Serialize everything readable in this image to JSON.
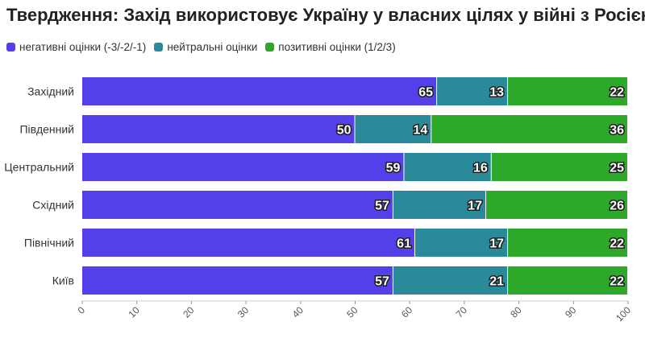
{
  "title": "Твердження: Захід використовує Україну у власних цілях у війні з Росією",
  "chart_data": {
    "type": "bar",
    "orientation": "horizontal",
    "stacked": true,
    "categories": [
      "Західний",
      "Південний",
      "Центральний",
      "Східний",
      "Північний",
      "Київ"
    ],
    "series": [
      {
        "name": "негативні оцінки (-3/-2/-1)",
        "color": "#5340e8",
        "values": [
          65,
          50,
          59,
          57,
          61,
          57
        ]
      },
      {
        "name": "нейтральні оцінки",
        "color": "#2b8a99",
        "values": [
          13,
          14,
          16,
          17,
          17,
          21
        ]
      },
      {
        "name": "позитивні оцінки (1/2/3)",
        "color": "#2ea82a",
        "values": [
          22,
          36,
          25,
          26,
          22,
          22
        ]
      }
    ],
    "xlim": [
      0,
      100
    ],
    "xticks": [
      "0",
      "10",
      "20",
      "30",
      "40",
      "50",
      "60",
      "70",
      "80",
      "90",
      "100"
    ],
    "xlabel": "",
    "ylabel": "",
    "legend_position": "top-left",
    "grid": false
  }
}
